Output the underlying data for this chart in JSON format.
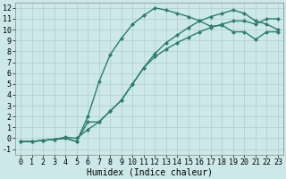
{
  "bg_color": "#cce8e8",
  "grid_color": "#b0cccc",
  "line_color": "#2e7d6e",
  "markersize": 2.5,
  "linewidth": 1.0,
  "xlabel": "Humidex (Indice chaleur)",
  "xlabel_fontsize": 7,
  "xlim": [
    -0.5,
    23.5
  ],
  "ylim": [
    -1.5,
    12.5
  ],
  "xticks": [
    0,
    1,
    2,
    3,
    4,
    5,
    6,
    7,
    8,
    9,
    10,
    11,
    12,
    13,
    14,
    15,
    16,
    17,
    18,
    19,
    20,
    21,
    22,
    23
  ],
  "yticks": [
    -1,
    0,
    1,
    2,
    3,
    4,
    5,
    6,
    7,
    8,
    9,
    10,
    11,
    12
  ],
  "tick_fontsize": 6,
  "curve1_x": [
    0,
    1,
    2,
    3,
    4,
    5,
    6,
    7,
    8,
    9,
    10,
    11,
    12,
    13,
    14,
    15,
    16,
    17,
    18,
    19,
    20,
    21,
    22,
    23
  ],
  "curve1_y": [
    -0.3,
    -0.3,
    -0.2,
    -0.1,
    0.0,
    -0.3,
    2.0,
    5.2,
    7.7,
    9.2,
    10.5,
    11.3,
    12.0,
    11.8,
    11.5,
    11.2,
    10.8,
    10.3,
    10.4,
    9.8,
    9.8,
    9.1,
    9.8,
    9.8
  ],
  "curve2_x": [
    0,
    1,
    2,
    3,
    4,
    5,
    6,
    7,
    8,
    9,
    10,
    11,
    12,
    13,
    14,
    15,
    16,
    17,
    18,
    19,
    20,
    21,
    22,
    23
  ],
  "curve2_y": [
    -0.3,
    -0.3,
    -0.2,
    -0.1,
    0.0,
    -0.3,
    1.5,
    1.5,
    2.5,
    3.5,
    5.0,
    6.5,
    7.8,
    8.8,
    9.5,
    10.2,
    10.8,
    11.2,
    11.5,
    11.8,
    11.5,
    10.8,
    10.5,
    10.0
  ],
  "curve3_x": [
    0,
    1,
    2,
    3,
    4,
    5,
    6,
    7,
    8,
    9,
    10,
    11,
    12,
    13,
    14,
    15,
    16,
    17,
    18,
    19,
    20,
    21,
    22,
    23
  ],
  "curve3_y": [
    -0.3,
    -0.3,
    -0.2,
    -0.1,
    0.1,
    0.0,
    0.8,
    1.5,
    2.5,
    3.5,
    5.0,
    6.5,
    7.5,
    8.2,
    8.8,
    9.3,
    9.8,
    10.2,
    10.5,
    10.8,
    10.8,
    10.5,
    11.0,
    11.0
  ]
}
